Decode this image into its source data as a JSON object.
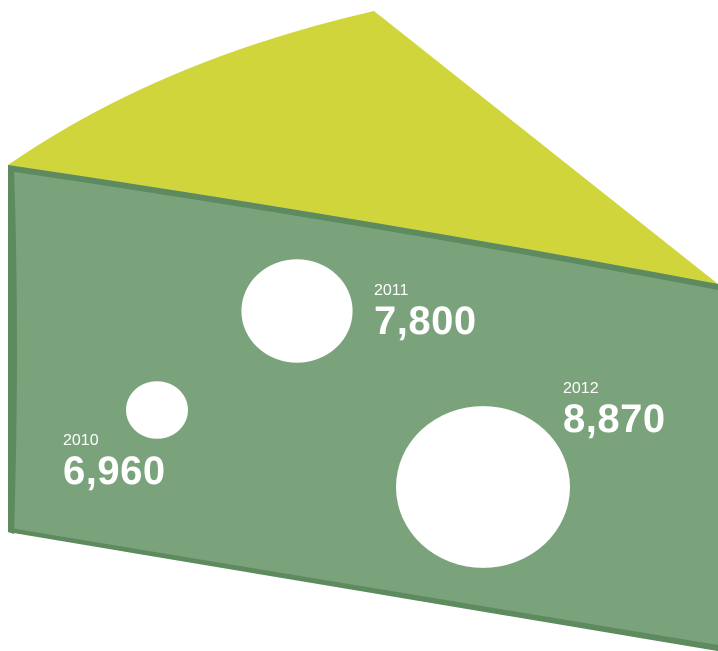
{
  "chart_data": {
    "type": "bubble",
    "title": "",
    "categories": [
      "2010",
      "2011",
      "2012"
    ],
    "values": [
      6960,
      7800,
      8870
    ],
    "value_labels": [
      "6,960",
      "7,800",
      "8,870"
    ],
    "ylim": [
      0,
      10000
    ]
  },
  "colors": {
    "cheese_top": "#d0d53c",
    "cheese_front": "#7aa27b",
    "cheese_shadow": "#5e8a60",
    "holes": "#ffffff",
    "labels": "#ffffff"
  }
}
